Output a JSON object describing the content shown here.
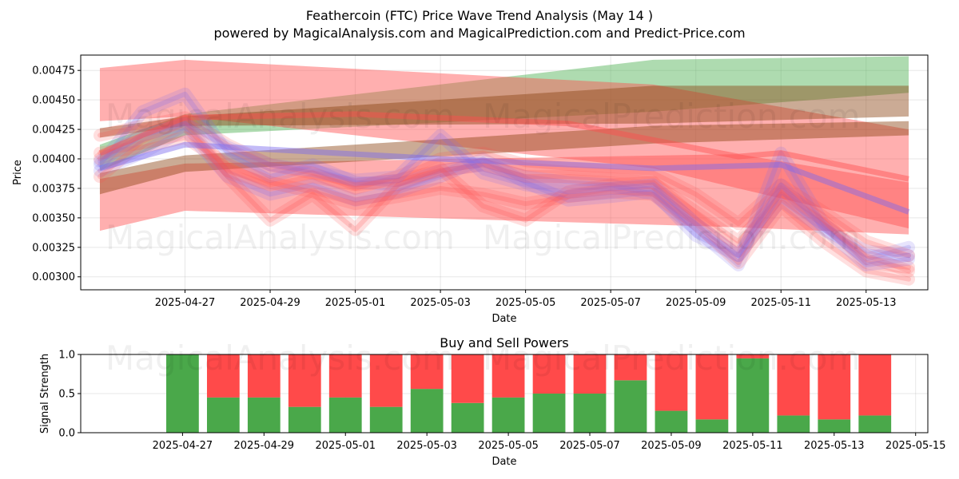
{
  "title_line1": "Feathercoin (FTC) Price Wave Trend Analysis (May 14 )",
  "title_line2": "powered by MagicalAnalysis.com and MagicalPrediction.com and Predict-Price.com",
  "watermarks": [
    "MagicalAnalysis.com",
    "MagicalPrediction.com"
  ],
  "colors": {
    "green": "#4caf50",
    "red": "#ff4d4d",
    "blue": "#7b68ee",
    "bar_green": "#4aa84a",
    "bar_red": "#ff4a4a"
  },
  "chart_data": [
    {
      "type": "area",
      "xlabel": "Date",
      "ylabel": "Price",
      "grid": true,
      "ylim": [
        0.00289,
        0.00488
      ],
      "xlim": [
        "2025-04-25",
        "2025-05-14"
      ],
      "x_ticks": [
        "2025-04-27",
        "2025-04-29",
        "2025-05-01",
        "2025-05-03",
        "2025-05-05",
        "2025-05-07",
        "2025-05-09",
        "2025-05-11",
        "2025-05-13"
      ],
      "y_ticks": [
        "0.00300",
        "0.00325",
        "0.00350",
        "0.00375",
        "0.00400",
        "0.00425",
        "0.00450",
        "0.00475"
      ],
      "trend_bands": [
        {
          "color": "green",
          "x": [
            "2025-04-25",
            "2025-04-27",
            "2025-05-08",
            "2025-05-14"
          ],
          "low": [
            0.0039,
            0.0042,
            0.0044,
            0.00456
          ],
          "high": [
            0.00412,
            0.00438,
            0.00484,
            0.00487
          ]
        },
        {
          "color": "red",
          "x": [
            "2025-04-25",
            "2025-04-27",
            "2025-05-08",
            "2025-05-14"
          ],
          "low": [
            0.00432,
            0.00436,
            0.00392,
            0.00341
          ],
          "high": [
            0.00477,
            0.00484,
            0.00463,
            0.00425
          ]
        },
        {
          "color": "red",
          "x": [
            "2025-04-25",
            "2025-04-27",
            "2025-05-10",
            "2025-05-14"
          ],
          "low": [
            0.00339,
            0.00356,
            0.00342,
            0.00336
          ],
          "high": [
            0.00383,
            0.00396,
            0.00404,
            0.0038
          ]
        },
        {
          "color": "brown",
          "x": [
            "2025-04-25",
            "2025-04-27",
            "2025-05-08",
            "2025-05-14"
          ],
          "low": [
            0.0037,
            0.00389,
            0.00413,
            0.0042
          ],
          "high": [
            0.00388,
            0.00403,
            0.00428,
            0.00432
          ]
        },
        {
          "color": "brown",
          "x": [
            "2025-04-25",
            "2025-04-27",
            "2025-05-08",
            "2025-05-14"
          ],
          "low": [
            0.00418,
            0.00428,
            0.0043,
            0.00436
          ],
          "high": [
            0.00426,
            0.00436,
            0.00462,
            0.00462
          ]
        }
      ],
      "wave_x": [
        "2025-04-25",
        "2025-04-26",
        "2025-04-27",
        "2025-04-28",
        "2025-04-29",
        "2025-04-30",
        "2025-05-01",
        "2025-05-02",
        "2025-05-03",
        "2025-05-04",
        "2025-05-05",
        "2025-05-06",
        "2025-05-07",
        "2025-05-08",
        "2025-05-09",
        "2025-05-10",
        "2025-05-11",
        "2025-05-12",
        "2025-05-13",
        "2025-05-14"
      ],
      "waves": [
        {
          "color": "blue",
          "y": [
            0.0039,
            0.00405,
            0.00425,
            0.00385,
            0.0037,
            0.00378,
            0.00365,
            0.00372,
            0.00385,
            0.004,
            0.0038,
            0.00365,
            0.00368,
            0.00372,
            0.00335,
            0.00318,
            0.00365,
            0.0034,
            0.00322,
            0.00318
          ]
        },
        {
          "color": "blue",
          "y": [
            0.00395,
            0.0044,
            0.00455,
            0.00405,
            0.00385,
            0.00395,
            0.0038,
            0.00378,
            0.0039,
            0.00395,
            0.00385,
            0.0038,
            0.00378,
            0.0037,
            0.0034,
            0.0031,
            0.00405,
            0.00345,
            0.00315,
            0.00325
          ]
        },
        {
          "color": "red",
          "y": [
            0.004,
            0.0042,
            0.00432,
            0.0039,
            0.00378,
            0.00385,
            0.00378,
            0.00382,
            0.0039,
            0.00395,
            0.00385,
            0.00385,
            0.00383,
            0.0038,
            0.00355,
            0.0033,
            0.0037,
            0.00345,
            0.00318,
            0.00305
          ]
        },
        {
          "color": "red",
          "y": [
            0.00385,
            0.00415,
            0.0043,
            0.00385,
            0.00348,
            0.0037,
            0.0034,
            0.00378,
            0.00392,
            0.0036,
            0.00348,
            0.00372,
            0.00378,
            0.0038,
            0.0035,
            0.00322,
            0.00372,
            0.00348,
            0.00312,
            0.00308
          ]
        },
        {
          "color": "red",
          "y": [
            0.0042,
            0.00428,
            0.00435,
            0.00412,
            0.00395,
            0.00388,
            0.00375,
            0.00385,
            0.004,
            0.00405,
            0.00395,
            0.00392,
            0.0039,
            0.00388,
            0.0037,
            0.00345,
            0.00378,
            0.00355,
            0.0033,
            0.00318
          ]
        },
        {
          "color": "red",
          "y": [
            0.00405,
            0.0041,
            0.00418,
            0.00395,
            0.0038,
            0.00372,
            0.00362,
            0.00368,
            0.00375,
            0.0037,
            0.00362,
            0.00368,
            0.00372,
            0.0037,
            0.00345,
            0.00312,
            0.0036,
            0.0033,
            0.00305,
            0.00298
          ]
        },
        {
          "color": "blue",
          "y": [
            0.00398,
            0.0042,
            0.0043,
            0.0041,
            0.00395,
            0.0039,
            0.00382,
            0.00385,
            0.0042,
            0.00388,
            0.00378,
            0.00372,
            0.00375,
            0.00378,
            0.00345,
            0.00318,
            0.00378,
            0.00342,
            0.0031,
            0.00315
          ]
        }
      ],
      "trend_lines": [
        {
          "color": "red",
          "x": [
            "2025-04-25",
            "2025-04-27",
            "2025-05-01",
            "2025-05-06",
            "2025-05-10",
            "2025-05-11",
            "2025-05-14"
          ],
          "y": [
            0.00405,
            0.00435,
            0.00438,
            0.0043,
            0.00402,
            0.00405,
            0.00383
          ]
        },
        {
          "color": "blue",
          "x": [
            "2025-04-25",
            "2025-04-27",
            "2025-05-03",
            "2025-05-08",
            "2025-05-11",
            "2025-05-14"
          ],
          "y": [
            0.00392,
            0.00412,
            0.004,
            0.00392,
            0.00395,
            0.00355
          ]
        }
      ]
    },
    {
      "type": "bar",
      "title": "Buy and Sell Powers",
      "xlabel": "Date",
      "ylabel": "Signal Strength",
      "ylim": [
        0,
        1
      ],
      "grid": true,
      "y_ticks": [
        "0.0",
        "0.5",
        "1.0"
      ],
      "x_ticks": [
        "2025-04-27",
        "2025-04-29",
        "2025-05-01",
        "2025-05-03",
        "2025-05-05",
        "2025-05-07",
        "2025-05-09",
        "2025-05-11",
        "2025-05-13",
        "2025-05-15"
      ],
      "categories": [
        "2025-04-27",
        "2025-04-28",
        "2025-04-29",
        "2025-04-30",
        "2025-05-01",
        "2025-05-02",
        "2025-05-03",
        "2025-05-04",
        "2025-05-05",
        "2025-05-06",
        "2025-05-07",
        "2025-05-08",
        "2025-05-09",
        "2025-05-10",
        "2025-05-11",
        "2025-05-12",
        "2025-05-13",
        "2025-05-14"
      ],
      "series": [
        {
          "color": "bar_green",
          "values": [
            1.0,
            0.45,
            0.45,
            0.33,
            0.45,
            0.33,
            0.56,
            0.38,
            0.45,
            0.5,
            0.5,
            0.67,
            0.28,
            0.17,
            0.95,
            0.22,
            0.17,
            0.22
          ]
        },
        {
          "color": "bar_red",
          "values": [
            0.0,
            0.55,
            0.55,
            0.67,
            0.55,
            0.67,
            0.44,
            0.62,
            0.55,
            0.5,
            0.5,
            0.33,
            0.72,
            0.83,
            0.05,
            0.78,
            0.83,
            0.78
          ]
        }
      ]
    }
  ]
}
